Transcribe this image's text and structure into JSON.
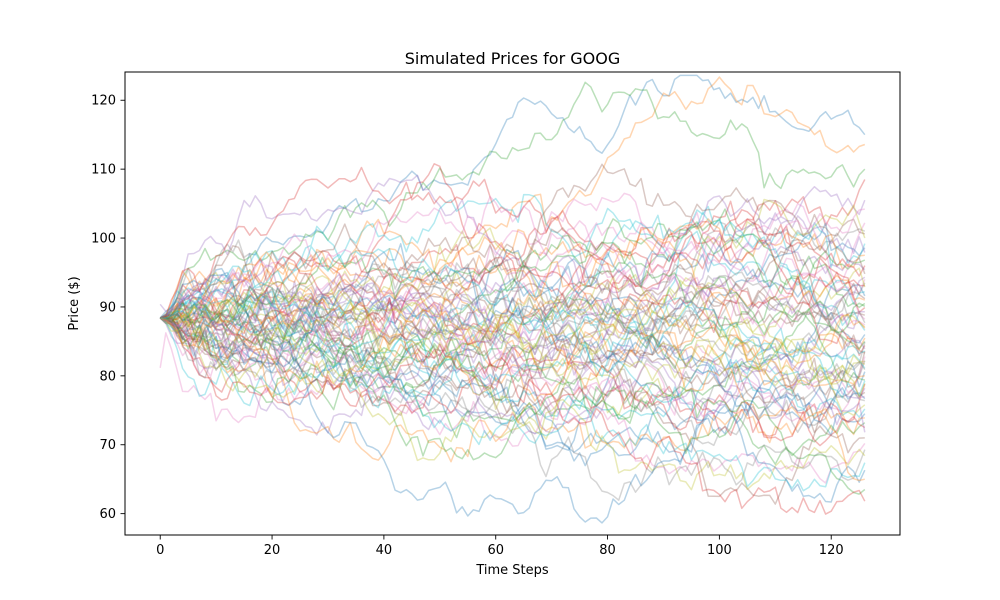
{
  "chart_data": {
    "type": "line",
    "title": "Simulated Prices for GOOG",
    "xlabel": "Time Steps",
    "ylabel": "Price ($)",
    "xlim": [
      -6.3,
      132.3
    ],
    "ylim": [
      56.9,
      124.1
    ],
    "xticks": [
      0,
      20,
      40,
      60,
      80,
      100,
      120
    ],
    "yticks": [
      60,
      70,
      80,
      90,
      100,
      110,
      120
    ],
    "grid": false,
    "legend": false,
    "n_steps": 127,
    "start_value": 88.4,
    "line_opacity": 0.32,
    "line_colors": [
      "#1f77b4",
      "#ff7f0e",
      "#2ca02c",
      "#d62728",
      "#9467bd",
      "#8c564b",
      "#e377c2",
      "#7f7f7f",
      "#bcbd22",
      "#17becf"
    ],
    "series_end_values": [
      115,
      110.8,
      110,
      108.5,
      105.5,
      103,
      102.2,
      101,
      100,
      99.2,
      98.6,
      97.5,
      96.8,
      96,
      95.4,
      94.8,
      94,
      93.5,
      92.9,
      92.2,
      91.6,
      91,
      90.5,
      89.9,
      89.3,
      88.8,
      88.2,
      87.7,
      87.1,
      86.6,
      86,
      85.5,
      85,
      84.4,
      83.9,
      83.3,
      82.8,
      82.2,
      81.7,
      81.1,
      80.6,
      80,
      79.4,
      78.8,
      78.2,
      77.6,
      77,
      76.4,
      75.8,
      75.2,
      74.5,
      73.9,
      73.2,
      72.5,
      71.8,
      71,
      70.2,
      69.3,
      68.4,
      67.4,
      66.3,
      65,
      63.5,
      61.8,
      94.3,
      91.2,
      87.4,
      84.9,
      82.1,
      79.3,
      76.7,
      86.9,
      90.1,
      93.1,
      97.9,
      100.6,
      104.2,
      80.9,
      78.9,
      83.6
    ],
    "series_peaks": [
      {
        "x": 86,
        "value": 121.2
      },
      {
        "x": 97,
        "value": 120.4
      },
      {
        "x": 67,
        "value": 115.8
      },
      {
        "x": 48,
        "value": 109.7
      },
      {
        "x": 20,
        "value": 103
      }
    ],
    "series_troughs": [
      {
        "x": 110,
        "value": 59.8
      },
      {
        "x": 19,
        "value": 77
      },
      {
        "x": 47,
        "value": 75
      }
    ]
  }
}
